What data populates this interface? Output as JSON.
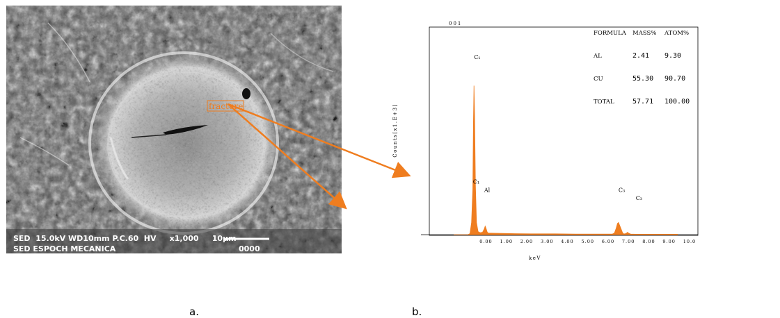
{
  "panel_a": {
    "caption": "a.",
    "label": "fracture",
    "footer_line1": "SED  15.0kV WD10mm P.C.60  HV     x1,000     10µm",
    "footer_line2": "SED ESPOCH MECANICA",
    "footer_code": "0000"
  },
  "panel_b": {
    "caption": "b.",
    "header_code": "001",
    "ylabel": "Counts[x1.E+3]",
    "xlabel": "keV"
  },
  "table": {
    "headers": [
      "FORMULA",
      "MASS%",
      "ATOM%"
    ],
    "rows": [
      {
        "formula": "AL",
        "mass": "2.41",
        "atom": "9.30"
      },
      {
        "formula": "CU",
        "mass": "55.30",
        "atom": "90.70"
      },
      {
        "formula": "TOTAL",
        "mass": "57.71",
        "atom": "100.00"
      }
    ]
  },
  "chart_data": {
    "type": "area",
    "xlabel": "keV",
    "ylabel": "Counts[x1.E+3]",
    "xlim": [
      -1,
      10
    ],
    "ylim": [
      0,
      10
    ],
    "x_tick_labels": [
      "0.00",
      "1.00",
      "2.00",
      "3.00",
      "4.00",
      "5.00",
      "6.00",
      "7.00",
      "8.00",
      "9.00",
      "10.0"
    ],
    "x_tick_values": [
      0,
      1,
      2,
      3,
      4,
      5,
      6,
      7,
      8,
      9,
      10
    ],
    "series": [
      {
        "x": [
          -1.0,
          -0.3,
          -0.2,
          -0.12,
          -0.06,
          -0.03,
          0.0,
          0.03,
          0.07,
          0.12,
          0.2,
          0.3,
          0.42,
          0.5,
          0.55,
          0.6,
          0.65,
          0.7,
          1.0,
          2.0,
          3.0,
          4.0,
          5.0,
          6.0,
          6.8,
          6.9,
          6.98,
          7.05,
          7.1,
          7.2,
          7.3,
          7.35,
          7.42,
          7.48,
          7.55,
          7.6,
          7.7,
          8.0,
          8.3,
          8.5,
          9.0,
          10.0
        ],
        "y": [
          0,
          0,
          0.05,
          0.6,
          2.2,
          5.5,
          7.3,
          5.8,
          2.4,
          0.6,
          0.15,
          0.1,
          0.12,
          0.28,
          0.42,
          0.28,
          0.12,
          0.08,
          0.07,
          0.05,
          0.04,
          0.04,
          0.03,
          0.03,
          0.03,
          0.08,
          0.3,
          0.55,
          0.6,
          0.35,
          0.1,
          0.04,
          0.04,
          0.07,
          0.12,
          0.07,
          0.03,
          0.02,
          0.02,
          0.02,
          0.02,
          0.02
        ],
        "color": "#ef7d1f"
      }
    ],
    "peak_labels": [
      {
        "text": "C₁",
        "x": 0.0,
        "y": 8.6
      },
      {
        "text": "C₁",
        "x": -0.05,
        "y": 2.5
      },
      {
        "text": "Al",
        "x": 0.5,
        "y": 2.1
      },
      {
        "text": "C₃",
        "x": 7.1,
        "y": 2.1
      },
      {
        "text": "C₃",
        "x": 7.95,
        "y": 1.7
      }
    ],
    "colors": {
      "fill": "#ef7d1f",
      "arrow": "#ef7d1f"
    }
  }
}
